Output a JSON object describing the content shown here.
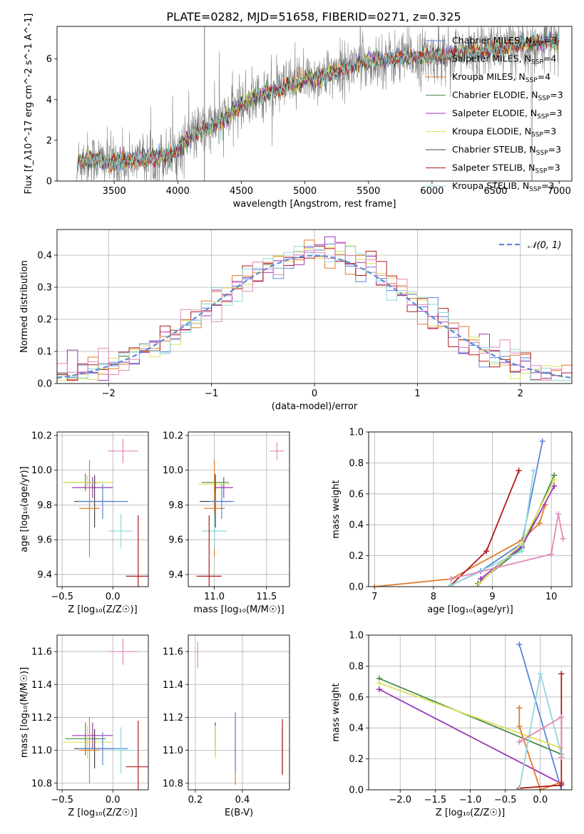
{
  "title": "PLATE=0282, MJD=51658, FIBERID=0271, z=0.325",
  "series_colors": {
    "Chabrier MILES": "#5b84d8",
    "Salpeter MILES": "#4a8a4a",
    "Kroupa MILES": "#e07b28",
    "Chabrier ELODIE": "#4a8a4a",
    "Salpeter ELODIE": "#9a35b8",
    "Kroupa ELODIE": "#dce25a",
    "Chabrier STELIB": "#444444",
    "Salpeter STELIB": "#b01a1a",
    "Kroupa STELIB": "#8fd8dc",
    "Pink": "#e487b8",
    "Gray": "#808080",
    "NormalCurve": "#5b8bd9"
  },
  "chart_data": [
    {
      "id": "spectrum",
      "type": "line",
      "xlabel": "wavelength [Angstrom, rest frame]",
      "ylabel": "Flux [f_λ10^-17 erg cm^-2 s^-1 A^-1]",
      "xlim": [
        3050,
        7100
      ],
      "ylim": [
        0,
        7.6
      ],
      "xticks": [
        3500,
        4000,
        4500,
        5000,
        5500,
        6000,
        6500,
        7000
      ],
      "yticks": [
        0,
        2,
        4,
        6
      ],
      "grid": false,
      "legend_position": "right",
      "legend": [
        {
          "label": "Chabrier MILES",
          "n": "3",
          "color_key": "Chabrier MILES"
        },
        {
          "label": "Salpeter MILES",
          "n": "4",
          "color_key": "Salpeter MILES"
        },
        {
          "label": "Kroupa MILES",
          "n": "4",
          "color_key": "Kroupa MILES"
        },
        {
          "label": "Chabrier ELODIE",
          "n": "3",
          "color_key": "Chabrier ELODIE"
        },
        {
          "label": "Salpeter ELODIE",
          "n": "3",
          "color_key": "Salpeter ELODIE"
        },
        {
          "label": "Kroupa ELODIE",
          "n": "3",
          "color_key": "Kroupa ELODIE"
        },
        {
          "label": "Chabrier STELIB",
          "n": "3",
          "color_key": "Chabrier STELIB"
        },
        {
          "label": "Salpeter STELIB",
          "n": "3",
          "color_key": "Salpeter STELIB"
        },
        {
          "label": "Kroupa STELIB",
          "n": "3",
          "color_key": "Kroupa STELIB"
        }
      ],
      "continuum": [
        [
          3200,
          0
        ],
        [
          3220,
          1.0
        ],
        [
          3300,
          1.1
        ],
        [
          3500,
          0.9
        ],
        [
          3700,
          1.1
        ],
        [
          3900,
          1.2
        ],
        [
          4000,
          1.5
        ],
        [
          4100,
          2.2
        ],
        [
          4300,
          2.8
        ],
        [
          4400,
          3.2
        ],
        [
          4500,
          3.8
        ],
        [
          4700,
          4.3
        ],
        [
          4900,
          4.7
        ],
        [
          5100,
          5.1
        ],
        [
          5300,
          5.5
        ],
        [
          5500,
          5.9
        ],
        [
          5700,
          6.0
        ],
        [
          5900,
          6.1
        ],
        [
          6100,
          6.2
        ],
        [
          6300,
          6.3
        ],
        [
          6500,
          6.5
        ],
        [
          6700,
          6.7
        ],
        [
          6900,
          6.9
        ],
        [
          7000,
          6.9
        ]
      ],
      "data_noise": 1.1
    },
    {
      "id": "residuals",
      "type": "line",
      "xlabel": "(data-model)/error",
      "ylabel": "Normed distribution",
      "xlim": [
        -2.5,
        2.5
      ],
      "ylim": [
        0,
        0.48
      ],
      "xticks": [
        -2,
        -1,
        0,
        1,
        2
      ],
      "yticks": [
        0.0,
        0.1,
        0.2,
        0.3,
        0.4
      ],
      "grid": true,
      "legend_position": "top-right",
      "legend": [
        {
          "label": "𝒩(0, 1)",
          "color_key": "NormalCurve"
        }
      ],
      "bin_width": 0.1
    },
    {
      "id": "age-vs-Z",
      "type": "scatter",
      "xlabel": "Z [log₁₀(Z/Z☉)]",
      "ylabel": "age  [log₁₀(age/yr)]",
      "xlim": [
        -0.55,
        0.35
      ],
      "ylim": [
        9.33,
        10.22
      ],
      "xticks": [
        -0.5,
        0.0
      ],
      "yticks": [
        9.4,
        9.6,
        9.8,
        10.0,
        10.2
      ],
      "grid": true,
      "points": [
        {
          "x": -0.27,
          "y": 9.93,
          "xerr": 0.2,
          "yerr": 0.05,
          "color_key": "Chabrier ELODIE"
        },
        {
          "x": -0.2,
          "y": 9.9,
          "xerr": 0.2,
          "yerr": 0.06,
          "color_key": "Salpeter ELODIE"
        },
        {
          "x": -0.25,
          "y": 9.93,
          "xerr": 0.25,
          "yerr": 0.04,
          "color_key": "Kroupa ELODIE"
        },
        {
          "x": -0.18,
          "y": 9.82,
          "xerr": 0.2,
          "yerr": 0.15,
          "color_key": "Chabrier STELIB"
        },
        {
          "x": -0.23,
          "y": 9.78,
          "xerr": 0.1,
          "yerr": 0.28,
          "color_key": "Kroupa MILES"
        },
        {
          "x": -0.1,
          "y": 9.82,
          "xerr": 0.25,
          "yerr": 0.1,
          "color_key": "Chabrier MILES"
        },
        {
          "x": 0.08,
          "y": 9.65,
          "xerr": 0.12,
          "yerr": 0.1,
          "color_key": "Kroupa STELIB"
        },
        {
          "x": 0.1,
          "y": 10.11,
          "xerr": 0.15,
          "yerr": 0.07,
          "color_key": "Pink"
        },
        {
          "x": 0.25,
          "y": 9.39,
          "xerr": 0.12,
          "yerr": 0.35,
          "color_key": "Salpeter STELIB"
        }
      ]
    },
    {
      "id": "age-vs-mass",
      "type": "scatter",
      "xlabel": "mass [log₁₀(M/M☉)]",
      "ylabel": "",
      "xlim": [
        10.75,
        11.72
      ],
      "ylim": [
        9.33,
        10.22
      ],
      "xticks": [
        11.0,
        11.5
      ],
      "yticks": [
        9.4,
        9.6,
        9.8,
        10.0,
        10.2
      ],
      "grid": true,
      "points": [
        {
          "x": 11.01,
          "y": 9.93,
          "xerr": 0.13,
          "yerr": 0.05,
          "color_key": "Chabrier ELODIE"
        },
        {
          "x": 11.09,
          "y": 9.9,
          "xerr": 0.09,
          "yerr": 0.06,
          "color_key": "Salpeter ELODIE"
        },
        {
          "x": 11.0,
          "y": 9.92,
          "xerr": 0.15,
          "yerr": 0.04,
          "color_key": "Kroupa ELODIE"
        },
        {
          "x": 11.01,
          "y": 9.82,
          "xerr": 0.15,
          "yerr": 0.15,
          "color_key": "Chabrier STELIB"
        },
        {
          "x": 11.0,
          "y": 9.78,
          "xerr": 0.1,
          "yerr": 0.28,
          "color_key": "Kroupa MILES"
        },
        {
          "x": 11.07,
          "y": 9.82,
          "xerr": 0.12,
          "yerr": 0.1,
          "color_key": "Chabrier MILES"
        },
        {
          "x": 11.0,
          "y": 9.65,
          "xerr": 0.12,
          "yerr": 0.1,
          "color_key": "Kroupa STELIB"
        },
        {
          "x": 11.6,
          "y": 10.11,
          "xerr": 0.07,
          "yerr": 0.05,
          "color_key": "Pink"
        },
        {
          "x": 10.95,
          "y": 9.39,
          "xerr": 0.12,
          "yerr": 0.35,
          "color_key": "Salpeter STELIB"
        }
      ]
    },
    {
      "id": "mass-weight-vs-age",
      "type": "line",
      "xlabel": "age  [log₁₀(age/yr)]",
      "ylabel": "mass weight",
      "xlim": [
        6.9,
        10.35
      ],
      "ylim": [
        0.0,
        1.0
      ],
      "xticks": [
        7,
        8,
        9,
        10
      ],
      "yticks": [
        0.0,
        0.2,
        0.4,
        0.6,
        0.8,
        1.0
      ],
      "grid": true,
      "series": [
        {
          "color_key": "Chabrier MILES",
          "points": [
            [
              8.3,
              0.01
            ],
            [
              8.8,
              0.1
            ],
            [
              9.5,
              0.28
            ],
            [
              9.85,
              0.94
            ]
          ]
        },
        {
          "color_key": "Kroupa MILES",
          "points": [
            [
              7.0,
              0.0
            ],
            [
              8.3,
              0.05
            ],
            [
              9.5,
              0.3
            ],
            [
              9.8,
              0.41
            ],
            [
              9.9,
              0.53
            ]
          ]
        },
        {
          "color_key": "Chabrier ELODIE",
          "points": [
            [
              8.75,
              0.02
            ],
            [
              9.5,
              0.25
            ],
            [
              10.05,
              0.72
            ]
          ]
        },
        {
          "color_key": "Salpeter ELODIE",
          "points": [
            [
              8.8,
              0.05
            ],
            [
              9.5,
              0.26
            ],
            [
              10.05,
              0.65
            ]
          ]
        },
        {
          "color_key": "Kroupa ELODIE",
          "points": [
            [
              8.78,
              0.02
            ],
            [
              9.5,
              0.28
            ],
            [
              10.05,
              0.69
            ]
          ]
        },
        {
          "color_key": "Salpeter STELIB",
          "points": [
            [
              8.3,
              0.01
            ],
            [
              8.9,
              0.23
            ],
            [
              9.45,
              0.75
            ]
          ]
        },
        {
          "color_key": "Kroupa STELIB",
          "points": [
            [
              8.3,
              0.01
            ],
            [
              9.5,
              0.23
            ],
            [
              9.7,
              0.75
            ]
          ]
        },
        {
          "color_key": "Pink",
          "points": [
            [
              8.3,
              0.05
            ],
            [
              10.0,
              0.21
            ],
            [
              10.12,
              0.47
            ],
            [
              10.2,
              0.31
            ]
          ]
        }
      ]
    },
    {
      "id": "mass-vs-Z",
      "type": "scatter",
      "xlabel": "Z [log₁₀(Z/Z☉)]",
      "ylabel": "mass [log₁₀(M/M☉)]",
      "xlim": [
        -0.55,
        0.35
      ],
      "ylim": [
        10.76,
        11.7
      ],
      "xticks": [
        -0.5,
        0.0
      ],
      "yticks": [
        10.8,
        11.0,
        11.2,
        11.4,
        11.6
      ],
      "grid": true,
      "points": [
        {
          "x": -0.27,
          "y": 11.07,
          "xerr": 0.2,
          "yerr": 0.1,
          "color_key": "Chabrier ELODIE"
        },
        {
          "x": -0.2,
          "y": 11.09,
          "xerr": 0.2,
          "yerr": 0.08,
          "color_key": "Salpeter ELODIE"
        },
        {
          "x": -0.25,
          "y": 11.05,
          "xerr": 0.25,
          "yerr": 0.1,
          "color_key": "Kroupa ELODIE"
        },
        {
          "x": -0.18,
          "y": 11.01,
          "xerr": 0.2,
          "yerr": 0.12,
          "color_key": "Chabrier STELIB"
        },
        {
          "x": -0.23,
          "y": 11.0,
          "xerr": 0.1,
          "yerr": 0.2,
          "color_key": "Kroupa MILES"
        },
        {
          "x": -0.1,
          "y": 11.01,
          "xerr": 0.25,
          "yerr": 0.1,
          "color_key": "Chabrier MILES"
        },
        {
          "x": 0.08,
          "y": 11.0,
          "xerr": 0.12,
          "yerr": 0.14,
          "color_key": "Kroupa STELIB"
        },
        {
          "x": 0.1,
          "y": 11.6,
          "xerr": 0.15,
          "yerr": 0.08,
          "color_key": "Pink"
        },
        {
          "x": 0.25,
          "y": 10.9,
          "xerr": 0.12,
          "yerr": 0.28,
          "color_key": "Salpeter STELIB"
        }
      ]
    },
    {
      "id": "mass-vs-ebv",
      "type": "scatter",
      "xlabel": "E(B-V)",
      "ylabel": "",
      "xlim": [
        0.17,
        0.6
      ],
      "ylim": [
        10.76,
        11.7
      ],
      "xticks": [
        0.2,
        0.4
      ],
      "yticks": [
        10.8,
        11.0,
        11.2,
        11.4,
        11.6
      ],
      "grid": true,
      "points": [
        {
          "x": 0.285,
          "y": 11.07,
          "xerr": 0.0,
          "yerr": 0.1,
          "color_key": "Chabrier ELODIE"
        },
        {
          "x": 0.285,
          "y": 11.09,
          "xerr": 0.0,
          "yerr": 0.08,
          "color_key": "Salpeter ELODIE"
        },
        {
          "x": 0.285,
          "y": 11.05,
          "xerr": 0.0,
          "yerr": 0.1,
          "color_key": "Kroupa ELODIE"
        },
        {
          "x": 0.37,
          "y": 11.01,
          "xerr": 0.0,
          "yerr": 0.22,
          "color_key": "Kroupa MILES"
        },
        {
          "x": 0.37,
          "y": 11.05,
          "xerr": 0.0,
          "yerr": 0.18,
          "color_key": "Chabrier MILES"
        },
        {
          "x": 0.568,
          "y": 11.0,
          "xerr": 0.0,
          "yerr": 0.14,
          "color_key": "Kroupa STELIB"
        },
        {
          "x": 0.57,
          "y": 11.02,
          "xerr": 0.0,
          "yerr": 0.17,
          "color_key": "Salpeter STELIB"
        },
        {
          "x": 0.21,
          "y": 11.58,
          "xerr": 0.0,
          "yerr": 0.08,
          "color_key": "Pink"
        }
      ]
    },
    {
      "id": "mass-weight-vs-Z",
      "type": "line",
      "xlabel": "Z [log₁₀(Z/Z☉)]",
      "ylabel": "mass weight",
      "xlim": [
        -2.45,
        0.45
      ],
      "ylim": [
        0.0,
        1.0
      ],
      "xticks": [
        -2.0,
        -1.5,
        -1.0,
        -0.5,
        0.0
      ],
      "yticks": [
        0.0,
        0.2,
        0.4,
        0.6,
        0.8,
        1.0
      ],
      "grid": true,
      "series": [
        {
          "color_key": "Chabrier MILES",
          "points": [
            [
              -0.3,
              0.94
            ],
            [
              0.3,
              0.0
            ]
          ]
        },
        {
          "color_key": "Chabrier ELODIE",
          "points": [
            [
              -2.3,
              0.72
            ],
            [
              0.3,
              0.23
            ]
          ]
        },
        {
          "color_key": "Salpeter ELODIE",
          "points": [
            [
              -2.3,
              0.65
            ],
            [
              0.3,
              0.04
            ]
          ]
        },
        {
          "color_key": "Kroupa ELODIE",
          "points": [
            [
              -2.3,
              0.69
            ],
            [
              0.3,
              0.27
            ]
          ]
        },
        {
          "color_key": "Kroupa MILES",
          "points": [
            [
              -0.3,
              0.53
            ],
            [
              -0.3,
              0.41
            ],
            [
              0.0,
              0.0
            ],
            [
              0.3,
              0.05
            ]
          ]
        },
        {
          "color_key": "Salpeter STELIB",
          "points": [
            [
              0.3,
              0.75
            ],
            [
              0.3,
              0.03
            ],
            [
              -0.3,
              0.01
            ]
          ]
        },
        {
          "color_key": "Kroupa STELIB",
          "points": [
            [
              -0.3,
              0.0
            ],
            [
              0.0,
              0.75
            ],
            [
              0.3,
              0.23
            ]
          ]
        },
        {
          "color_key": "Pink",
          "points": [
            [
              -0.3,
              0.31
            ],
            [
              0.3,
              0.47
            ],
            [
              0.3,
              0.21
            ]
          ]
        }
      ]
    }
  ]
}
